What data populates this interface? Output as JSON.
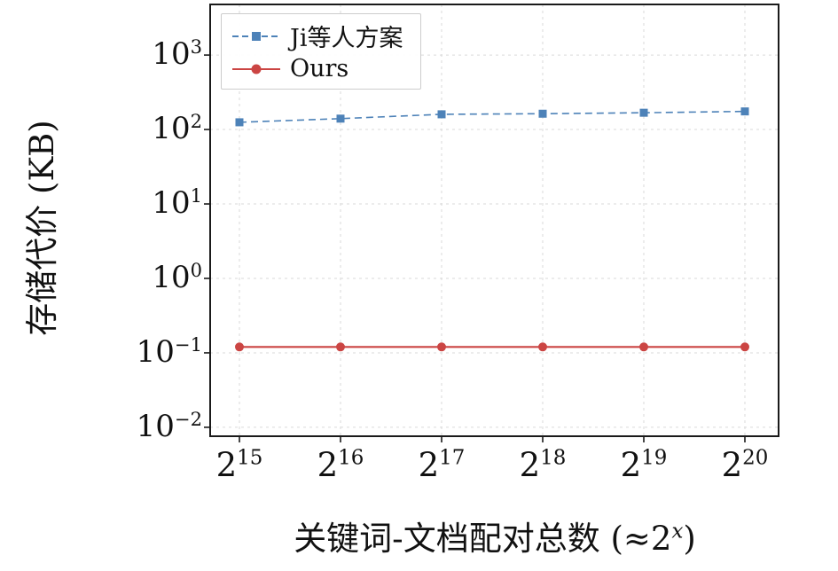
{
  "chart_data": {
    "type": "line",
    "title": "",
    "xlabel": "关键词-文档配对总数 (≈2^x)",
    "xlabel_prefix": "关键词-文档配对总数 (≈2",
    "xlabel_exp": "x",
    "xlabel_suffix": ")",
    "ylabel": "存储代价 (KB)",
    "y_scale": "log",
    "ylim": [
      0.01,
      1000
    ],
    "frame_log_range": [
      -2.12,
      3.68
    ],
    "grid": "dashed",
    "legend_position": "upper-left",
    "x_base": "2",
    "x_ticks": [
      {
        "exp_label": "15",
        "exp": 15
      },
      {
        "exp_label": "16",
        "exp": 16
      },
      {
        "exp_label": "17",
        "exp": 17
      },
      {
        "exp_label": "18",
        "exp": 18
      },
      {
        "exp_label": "19",
        "exp": 19
      },
      {
        "exp_label": "20",
        "exp": 20
      }
    ],
    "y_base": "10",
    "y_ticks": [
      {
        "exp_label": "3",
        "exp": 3
      },
      {
        "exp_label": "2",
        "exp": 2
      },
      {
        "exp_label": "1",
        "exp": 1
      },
      {
        "exp_label": "0",
        "exp": 0
      },
      {
        "exp_label": "−1",
        "exp": -1
      },
      {
        "exp_label": "−2",
        "exp": -2
      }
    ],
    "series": [
      {
        "name": "Ji等人方案",
        "color": "#4d82b8",
        "line_style": "dashed",
        "marker": "square",
        "values": [
          125,
          140,
          160,
          163,
          168,
          175
        ]
      },
      {
        "name": "Ours",
        "color": "#cb4543",
        "line_style": "solid",
        "marker": "circle",
        "values": [
          0.12,
          0.12,
          0.12,
          0.12,
          0.12,
          0.12
        ]
      }
    ]
  },
  "colors": {
    "background": "#ffffff",
    "frame": "#1a1a1a",
    "gridline": "#dadada",
    "series_blue": "#4d82b8",
    "series_red": "#cb4543",
    "legend_border": "#cccccc"
  }
}
